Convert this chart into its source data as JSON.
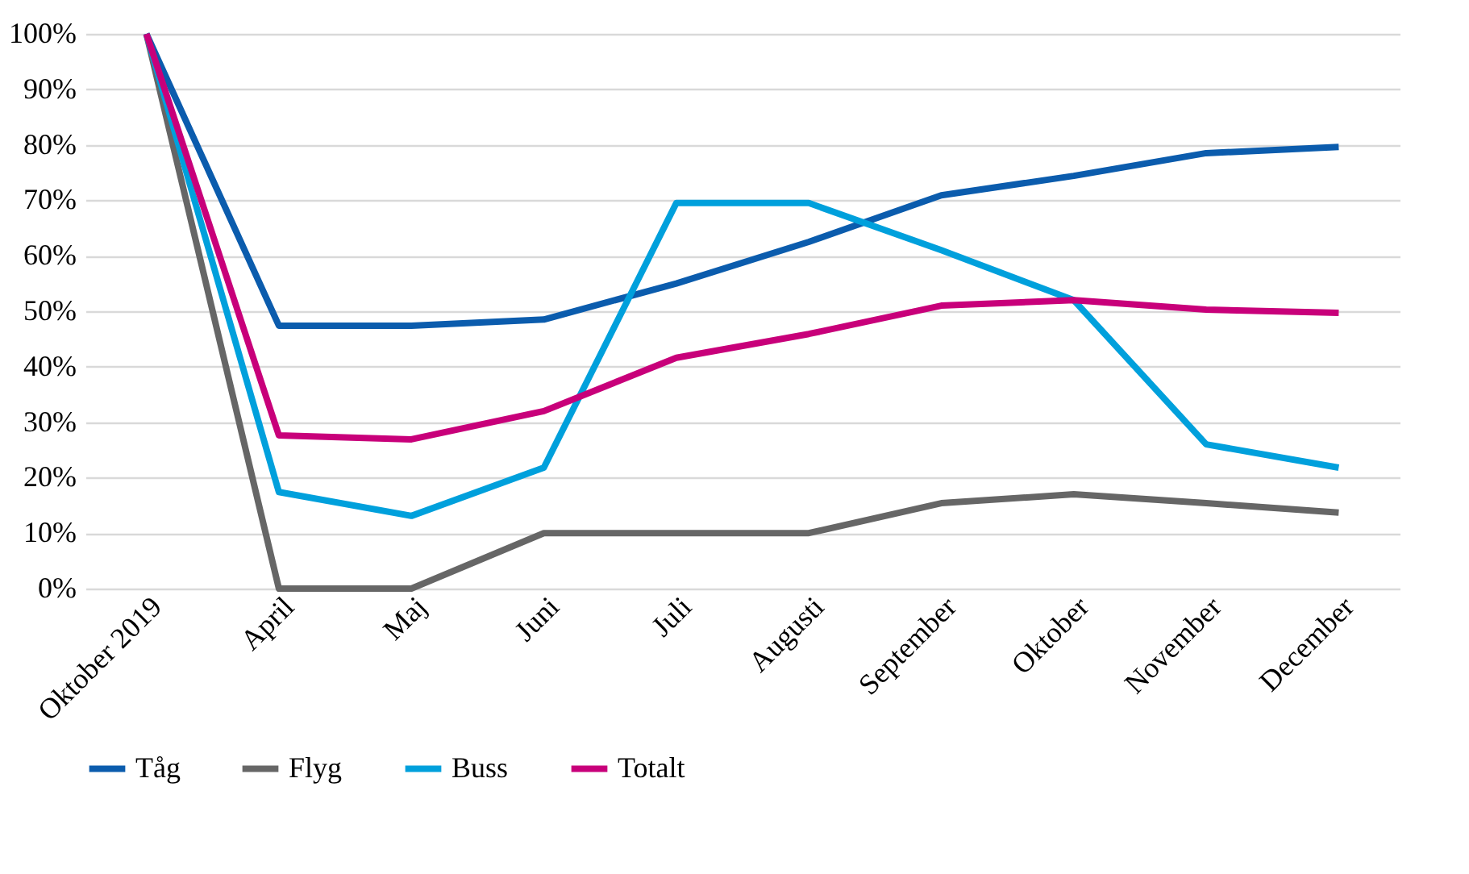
{
  "chart_data": {
    "type": "line",
    "categories": [
      "Oktober 2019",
      "April",
      "Maj",
      "Juni",
      "Juli",
      "Augusti",
      "September",
      "Oktober",
      "November",
      "December"
    ],
    "series": [
      {
        "name": "Tåg",
        "color": "#0b5cad",
        "values": [
          100,
          47.4,
          47.4,
          48.5,
          55,
          62.5,
          70.9,
          74.4,
          78.5,
          79.6
        ]
      },
      {
        "name": "Flyg",
        "color": "#666666",
        "values": [
          100,
          0,
          0,
          10,
          10,
          10,
          15.4,
          17,
          15.4,
          13.7
        ]
      },
      {
        "name": "Buss",
        "color": "#00a0dc",
        "values": [
          100,
          17.4,
          13.1,
          21.8,
          69.5,
          69.5,
          61,
          52,
          26,
          21.8
        ]
      },
      {
        "name": "Totalt",
        "color": "#c8007a",
        "values": [
          100,
          27.6,
          26.9,
          32,
          41.6,
          45.9,
          51,
          52,
          50.3,
          49.7
        ]
      }
    ],
    "ylim": [
      0,
      100
    ],
    "yticks": [
      {
        "value": 0,
        "label": "0%"
      },
      {
        "value": 10,
        "label": "10%"
      },
      {
        "value": 20,
        "label": "20%"
      },
      {
        "value": 30,
        "label": "30%"
      },
      {
        "value": 40,
        "label": "40%"
      },
      {
        "value": 50,
        "label": "50%"
      },
      {
        "value": 60,
        "label": "60%"
      },
      {
        "value": 70,
        "label": "70%"
      },
      {
        "value": 80,
        "label": "80%"
      },
      {
        "value": 90,
        "label": "90%"
      },
      {
        "value": 100,
        "label": "100%"
      }
    ],
    "grid": "y",
    "legend": "bottom",
    "marker": "none",
    "line_style": "solid"
  }
}
